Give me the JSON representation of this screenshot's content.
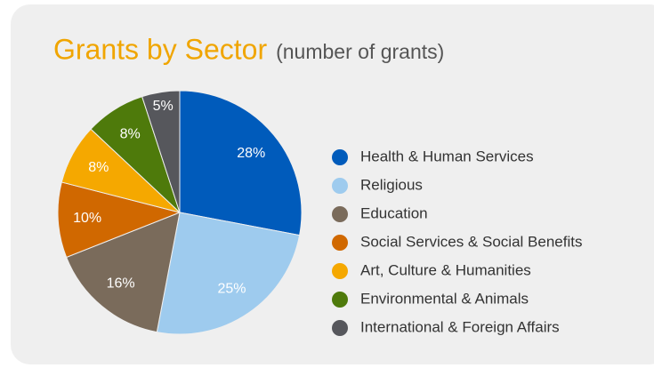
{
  "chart_data": {
    "type": "pie",
    "title": "Grants by Sector",
    "subtitle": "(number of grants)",
    "categories": [
      "Health & Human Services",
      "Religious",
      "Education",
      "Social Services & Social Benefits",
      "Art, Culture & Humanities",
      "Environmental & Animals",
      "International & Foreign Affairs"
    ],
    "values": [
      28,
      25,
      16,
      10,
      8,
      8,
      5
    ],
    "value_labels": [
      "28%",
      "25%",
      "16%",
      "10%",
      "8%",
      "8%",
      "5%"
    ],
    "colors": [
      "#005bbb",
      "#9ecbee",
      "#7a6b5b",
      "#d06800",
      "#f5a800",
      "#4e7a0b",
      "#56575c"
    ],
    "legend": "right"
  }
}
